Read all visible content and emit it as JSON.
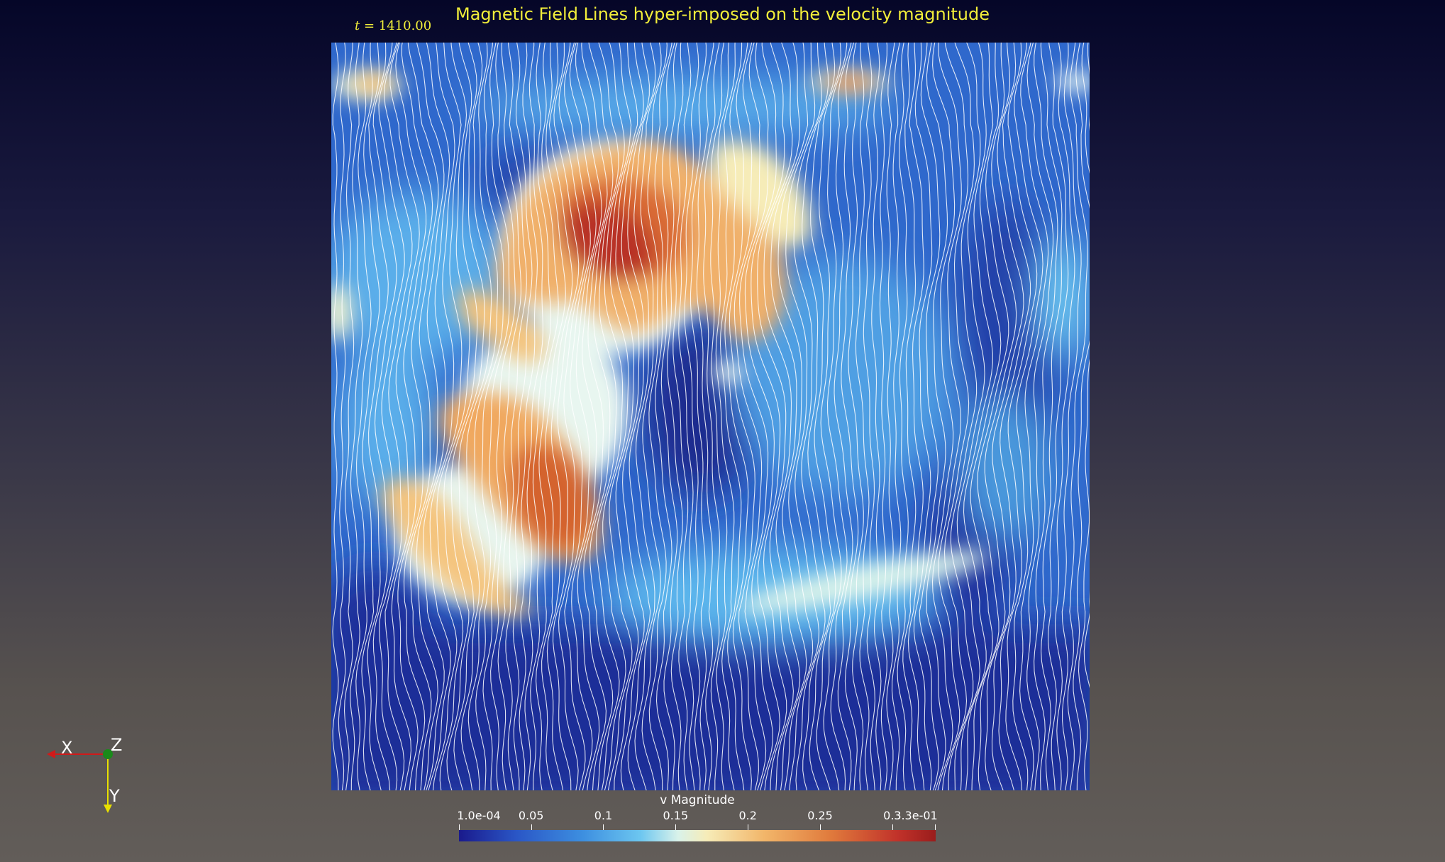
{
  "title": "Magnetic Field Lines hyper-imposed on the velocity magnitude",
  "time": {
    "symbol": "t",
    "value_text": " = 1410.00"
  },
  "axes": {
    "x_label": "X",
    "y_label": "Y",
    "z_label": "Z",
    "colors": {
      "x": "#d11a1a",
      "y": "#e8e000",
      "z": "#1a8a1a"
    }
  },
  "colorbar": {
    "title": "v Magnitude",
    "ticks": [
      "1.0e-04",
      "0.05",
      "0.1",
      "0.15",
      "0.2",
      "0.25",
      "0.3",
      "3.3e-01"
    ],
    "tick_values": [
      0.0001,
      0.05,
      0.1,
      0.15,
      0.2,
      0.25,
      0.3,
      0.33
    ],
    "range": [
      0.0001,
      0.33
    ],
    "colormap": [
      "#1a1a8c",
      "#2a56c6",
      "#3d8fe0",
      "#6cc6f0",
      "#d9f2ea",
      "#f6ecb8",
      "#f2b66a",
      "#e07a3c",
      "#c1322a",
      "#9a1d1c"
    ]
  },
  "colors": {
    "title_text": "#f2ee3a",
    "field_line": "#ffffff",
    "background_top": "#050628",
    "background_bottom": "#625d59"
  }
}
